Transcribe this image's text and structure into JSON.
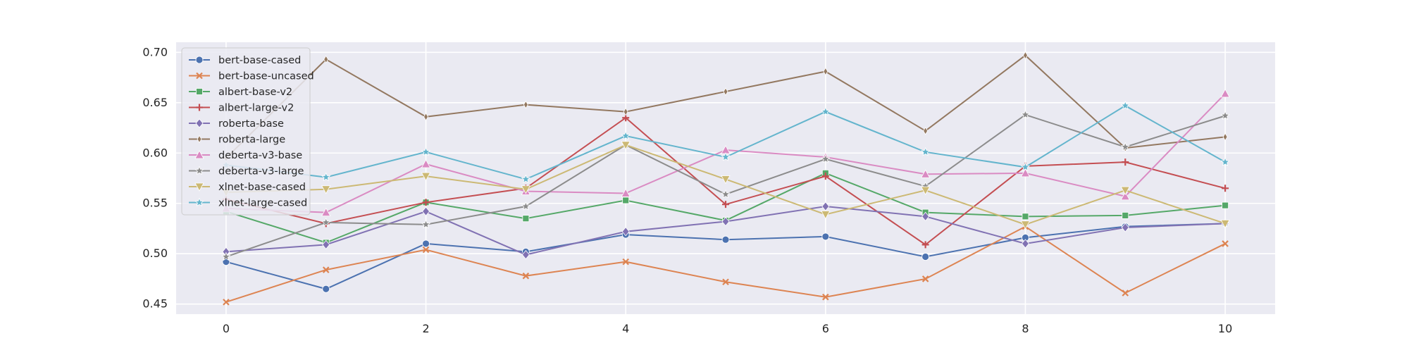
{
  "chart_data": {
    "type": "line",
    "title": "",
    "xlabel": "",
    "ylabel": "",
    "x": [
      0,
      1,
      2,
      3,
      4,
      5,
      6,
      7,
      8,
      9,
      10
    ],
    "xlim": [
      -0.5,
      10.5
    ],
    "ylim": [
      0.44,
      0.71
    ],
    "xticks": [
      0,
      2,
      4,
      6,
      8,
      10
    ],
    "xtick_labels": [
      "0",
      "2",
      "4",
      "6",
      "8",
      "10"
    ],
    "yticks": [
      0.45,
      0.5,
      0.55,
      0.6,
      0.65,
      0.7
    ],
    "ytick_labels": [
      "0.45",
      "0.50",
      "0.55",
      "0.60",
      "0.65",
      "0.70"
    ],
    "grid": true,
    "legend_position": "top-left",
    "background": "#eaeaf2",
    "series": [
      {
        "name": "bert-base-cased",
        "color": "#4c72b0",
        "marker": "circle",
        "values": [
          0.492,
          0.465,
          0.51,
          0.502,
          0.519,
          0.514,
          0.517,
          0.497,
          0.516,
          0.527,
          0.53
        ]
      },
      {
        "name": "bert-base-uncased",
        "color": "#dd8452",
        "marker": "x",
        "values": [
          0.452,
          0.484,
          0.504,
          0.478,
          0.492,
          0.472,
          0.457,
          0.475,
          0.527,
          0.461,
          0.51
        ]
      },
      {
        "name": "albert-base-v2",
        "color": "#55a868",
        "marker": "square",
        "values": [
          0.542,
          0.511,
          0.551,
          0.535,
          0.553,
          0.533,
          0.58,
          0.541,
          0.537,
          0.538,
          0.548
        ]
      },
      {
        "name": "albert-large-v2",
        "color": "#c44e52",
        "marker": "plus",
        "values": [
          0.554,
          0.53,
          0.551,
          0.565,
          0.635,
          0.549,
          0.577,
          0.509,
          0.587,
          0.591,
          0.565
        ]
      },
      {
        "name": "roberta-base",
        "color": "#8172b3",
        "marker": "diamond",
        "values": [
          0.502,
          0.509,
          0.542,
          0.499,
          0.522,
          0.532,
          0.547,
          0.537,
          0.51,
          0.526,
          0.53
        ]
      },
      {
        "name": "roberta-large",
        "color": "#937860",
        "marker": "thin_diamond",
        "values": [
          0.595,
          0.693,
          0.636,
          0.648,
          0.641,
          0.661,
          0.681,
          0.622,
          0.697,
          0.605,
          0.616
        ]
      },
      {
        "name": "deberta-v3-base",
        "color": "#da8bc3",
        "marker": "triangle-up",
        "values": [
          0.545,
          0.541,
          0.589,
          0.562,
          0.56,
          0.603,
          0.596,
          0.579,
          0.58,
          0.557,
          0.659
        ]
      },
      {
        "name": "deberta-v3-large",
        "color": "#8c8c8c",
        "marker": "star",
        "values": [
          0.497,
          0.531,
          0.529,
          0.547,
          0.608,
          0.559,
          0.594,
          0.567,
          0.638,
          0.606,
          0.637
        ]
      },
      {
        "name": "xlnet-base-cased",
        "color": "#ccb974",
        "marker": "triangle-down",
        "values": [
          0.561,
          0.564,
          0.577,
          0.564,
          0.608,
          0.574,
          0.539,
          0.563,
          0.529,
          0.563,
          0.53
        ]
      },
      {
        "name": "xlnet-large-cased",
        "color": "#64b5cd",
        "marker": "star",
        "values": [
          0.588,
          0.576,
          0.601,
          0.574,
          0.617,
          0.596,
          0.641,
          0.601,
          0.586,
          0.647,
          0.591
        ]
      }
    ]
  }
}
